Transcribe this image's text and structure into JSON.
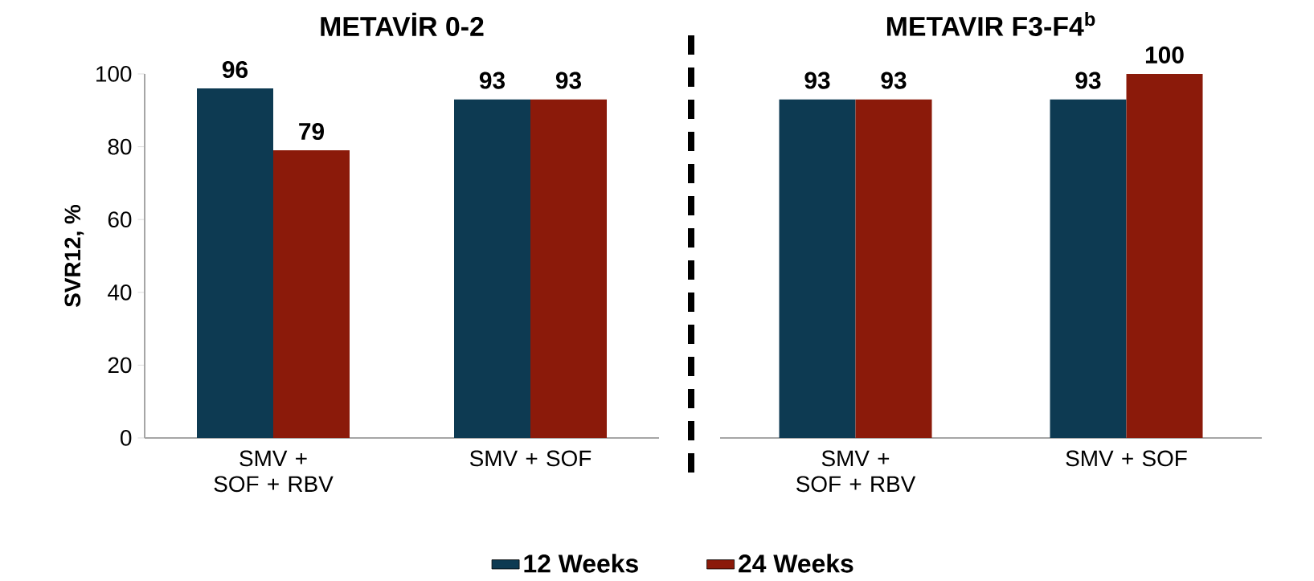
{
  "chart_data": [
    {
      "type": "bar",
      "title": "METAVİR 0-2",
      "ylabel": "SVR12, %",
      "categories": [
        "SMV + SOF + RBV",
        "SMV + SOF"
      ],
      "series": [
        {
          "name": "12 Weeks",
          "color": "#0d3a52",
          "values": [
            96,
            93
          ]
        },
        {
          "name": "24 Weeks",
          "color": "#8b1a0a",
          "values": [
            79,
            93
          ]
        }
      ],
      "ylim": [
        0,
        100
      ],
      "yticks": [
        0,
        20,
        40,
        60,
        80,
        100
      ],
      "data_labels": true,
      "legend": "bottom"
    },
    {
      "type": "bar",
      "title": "METAVIR F3-F4$^{b}$",
      "categories": [
        "SMV + SOF + RBV",
        "SMV + SOF"
      ],
      "series": [
        {
          "color": "#0d3a52",
          "values": [
            93,
            93
          ]
        },
        {
          "color": "#8b1a0a",
          "values": [
            93,
            100
          ]
        }
      ],
      "ylim": [
        0,
        100
      ],
      "yticks": [
        0,
        20,
        40,
        60,
        80,
        100
      ],
      "data_labels": true,
      "tick_labels": "x"
    }
  ]
}
